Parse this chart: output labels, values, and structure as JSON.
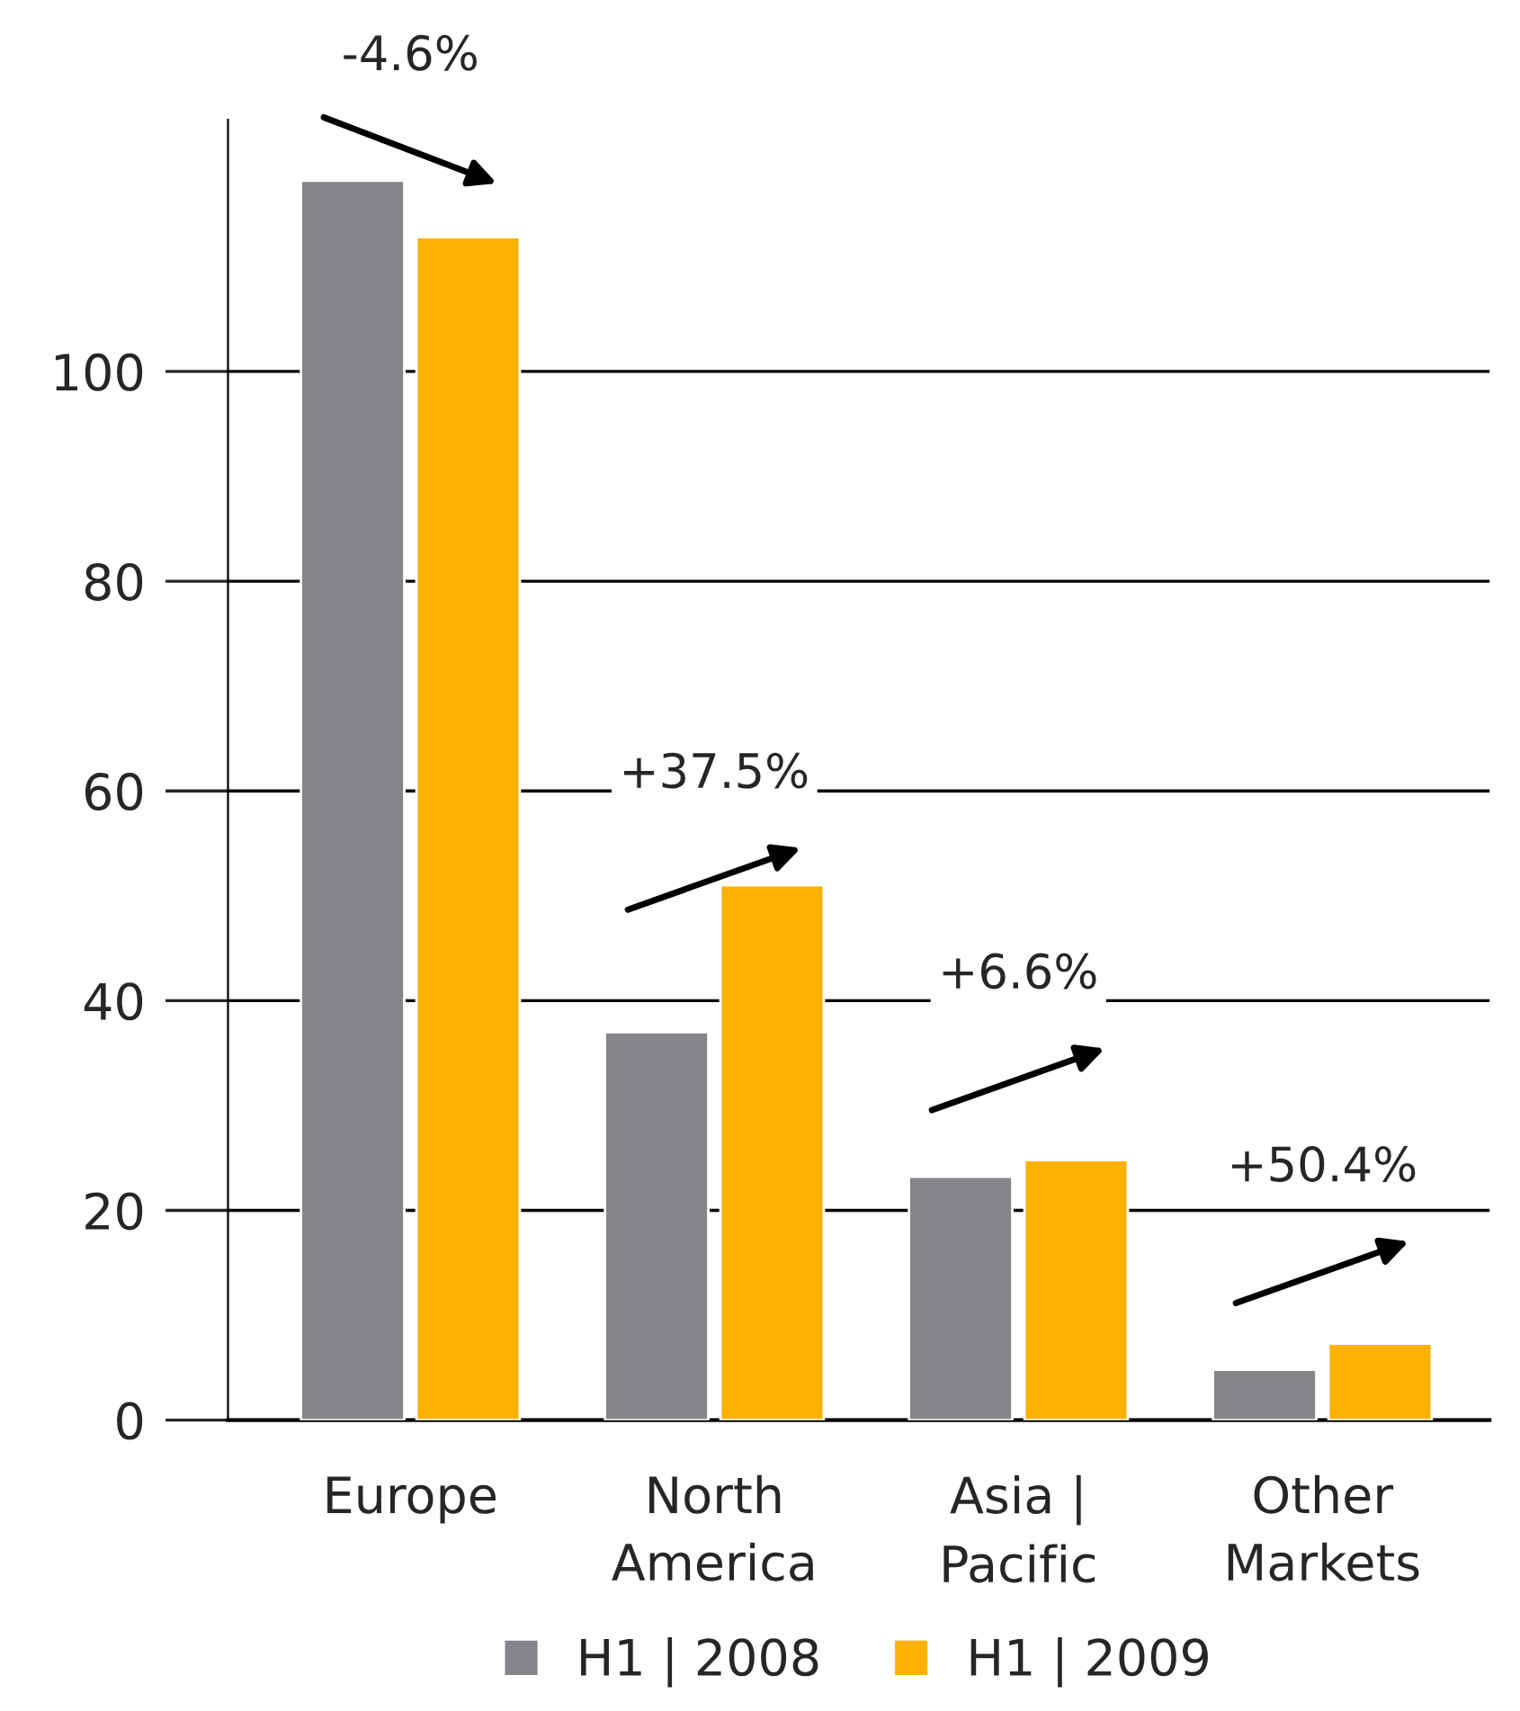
{
  "chart_data": {
    "type": "bar",
    "categories": [
      "Europe",
      "North\nAmerica",
      "Asia |\nPacific",
      "Other\nMarkets"
    ],
    "series": [
      {
        "name": "H1 | 2008",
        "color": "#858589",
        "values": [
          118.2,
          37.0,
          23.2,
          4.8
        ]
      },
      {
        "name": "H1 | 2009",
        "color": "#fdb100",
        "values": [
          112.8,
          51.0,
          24.8,
          7.3
        ]
      }
    ],
    "ylim": [
      0,
      124
    ],
    "yticks": [
      0,
      20,
      40,
      60,
      80,
      100
    ],
    "grid": "y",
    "legend": "bottom",
    "annotations": [
      "-4.6%",
      "+37.5%",
      "+6.6%",
      "+50.4%"
    ]
  }
}
